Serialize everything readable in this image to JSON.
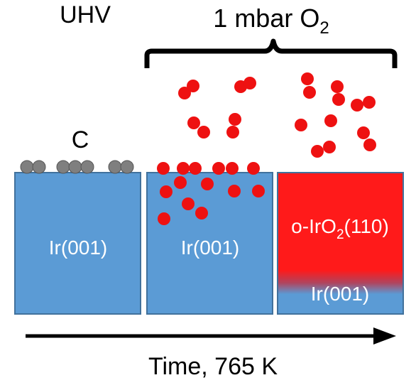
{
  "conditions": {
    "uhv": "UHV",
    "oxygen_prefix": "1 mbar O",
    "oxygen_subscript": "2"
  },
  "stages": [
    {
      "id": "uhv",
      "substrate_label": "Ir(001)",
      "adsorbate_label": "C"
    },
    {
      "id": "o2-adsorbed",
      "substrate_label": "Ir(001)"
    },
    {
      "id": "oxide",
      "oxide_label_prefix": "o-IrO",
      "oxide_label_subscript": "2",
      "oxide_label_suffix": "(110)",
      "substrate_label": "Ir(001)"
    }
  ],
  "time_axis": {
    "label": "Time, 765 K"
  },
  "colors": {
    "substrate": "#5b9bd5",
    "substrate_edge": "#41719c",
    "oxide": "#ff1a1a",
    "oxygen_atom": "#ee1111",
    "carbon_atom": "#7f7f7f",
    "ink": "#000000",
    "label_on_substrate": "#ffffff"
  }
}
